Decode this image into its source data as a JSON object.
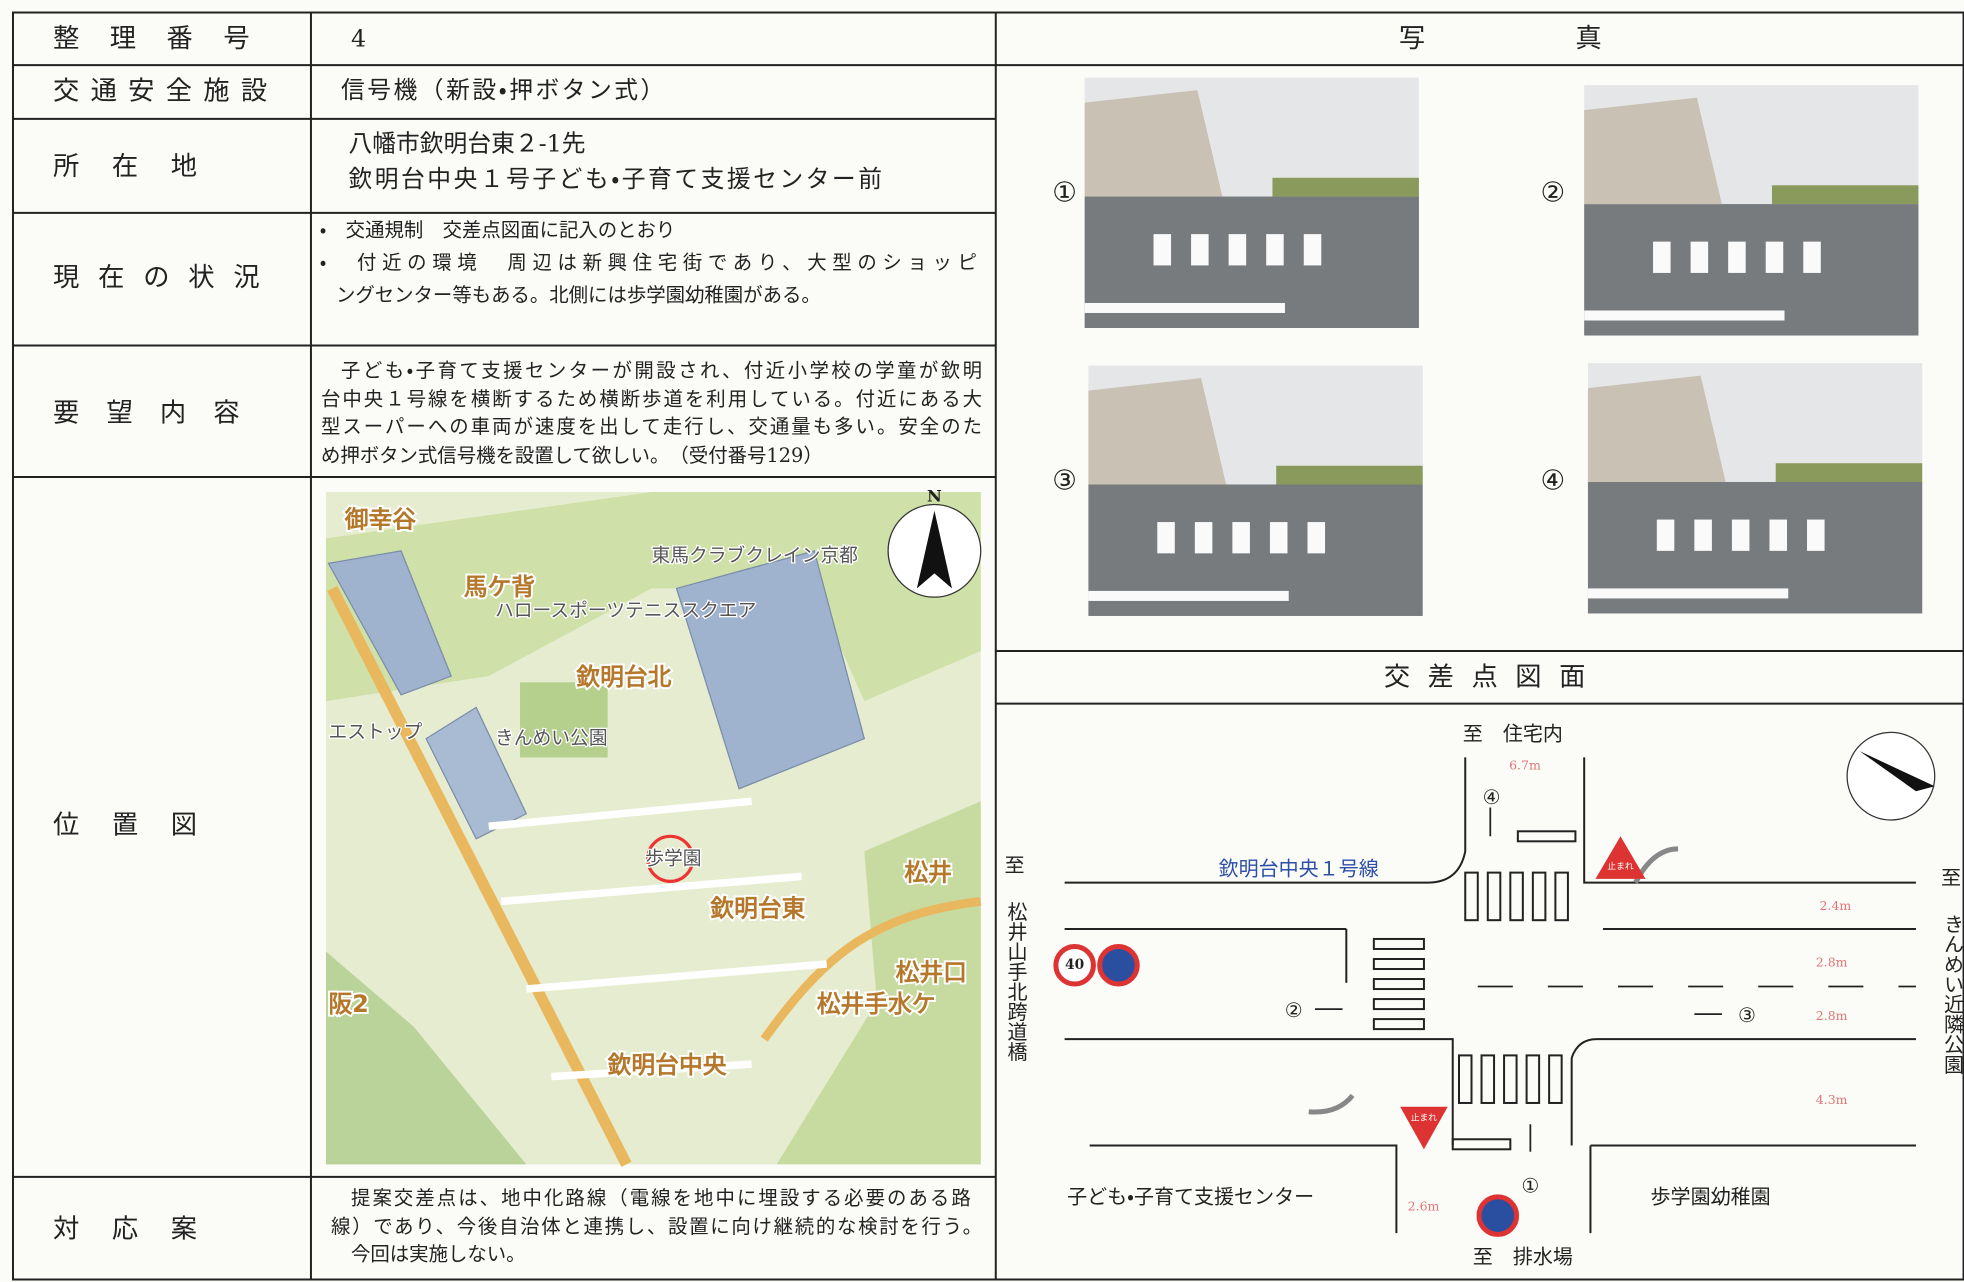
{
  "table": {
    "rows": [
      {
        "label": "整理番号",
        "value": "4"
      },
      {
        "label": "交通安全施設",
        "value": "信号機（新設・押ボタン式）"
      },
      {
        "label": "所在地",
        "lines": [
          "八幡市欽明台東２-1先",
          "欽明台中央１号子ども・子育て支援センター前"
        ]
      },
      {
        "label": "現在の状況",
        "lines": [
          "・　交通規制　交差点図面に記入のとおり",
          "・　付近の環境　周辺は新興住宅街であり、大型のショッピ",
          "ングセンター等もある。北側には歩学園幼稚園がある。"
        ]
      },
      {
        "label": "要望内容",
        "lines": [
          "子ども・子育て支援センターが開設され、付近小学校の学童が欽明",
          "台中央１号線を横断するため横断歩道を利用している。付近にある大",
          "型スーパーへの車両が速度を出して走行し、交通量も多い。安全のた",
          "め押ボタン式信号機を設置して欲しい。　（受付番号129）"
        ]
      },
      {
        "label": "位置図"
      },
      {
        "label": "対応案",
        "lines": [
          "提案交差点は、地中化路線（電線を地中に埋設する必要のある路",
          "線）であり、今後自治体と連携し、設置に向け継続的な検討を行う。",
          "今回は実施しない。"
        ]
      }
    ]
  },
  "photos": {
    "header": "写真",
    "labels": [
      "①",
      "②",
      "③",
      "④"
    ]
  },
  "map": {
    "north": "N",
    "labels": [
      "御幸谷",
      "東馬クラブクレイン京都",
      "馬ケ背",
      "ハロースポーツテニススクエア",
      "欽明台北",
      "きんめい公園",
      "エストップ",
      "歩学園",
      "欽明台東",
      "松井",
      "松井口",
      "松井手水ケ",
      "阪2",
      "欽明台中央"
    ]
  },
  "diagram": {
    "title": "交差点図面",
    "road_name": "欽明台中央１号線",
    "to": "至",
    "north_dest": "住宅内",
    "south_dest": "排水場",
    "west_dest": "松井山手北跨道橋",
    "east_dest": "きんめい近隣公園",
    "widths": [
      "6.7m",
      "2.4m",
      "2.8m",
      "2.8m",
      "4.3m",
      "2.6m"
    ],
    "photo_points": [
      "①",
      "②",
      "③",
      "④"
    ],
    "speed_limit": "40",
    "stop_sign": "止まれ",
    "southwest_building": "子ども・子育て支援センター",
    "southeast_building": "歩学園幼稚園"
  }
}
